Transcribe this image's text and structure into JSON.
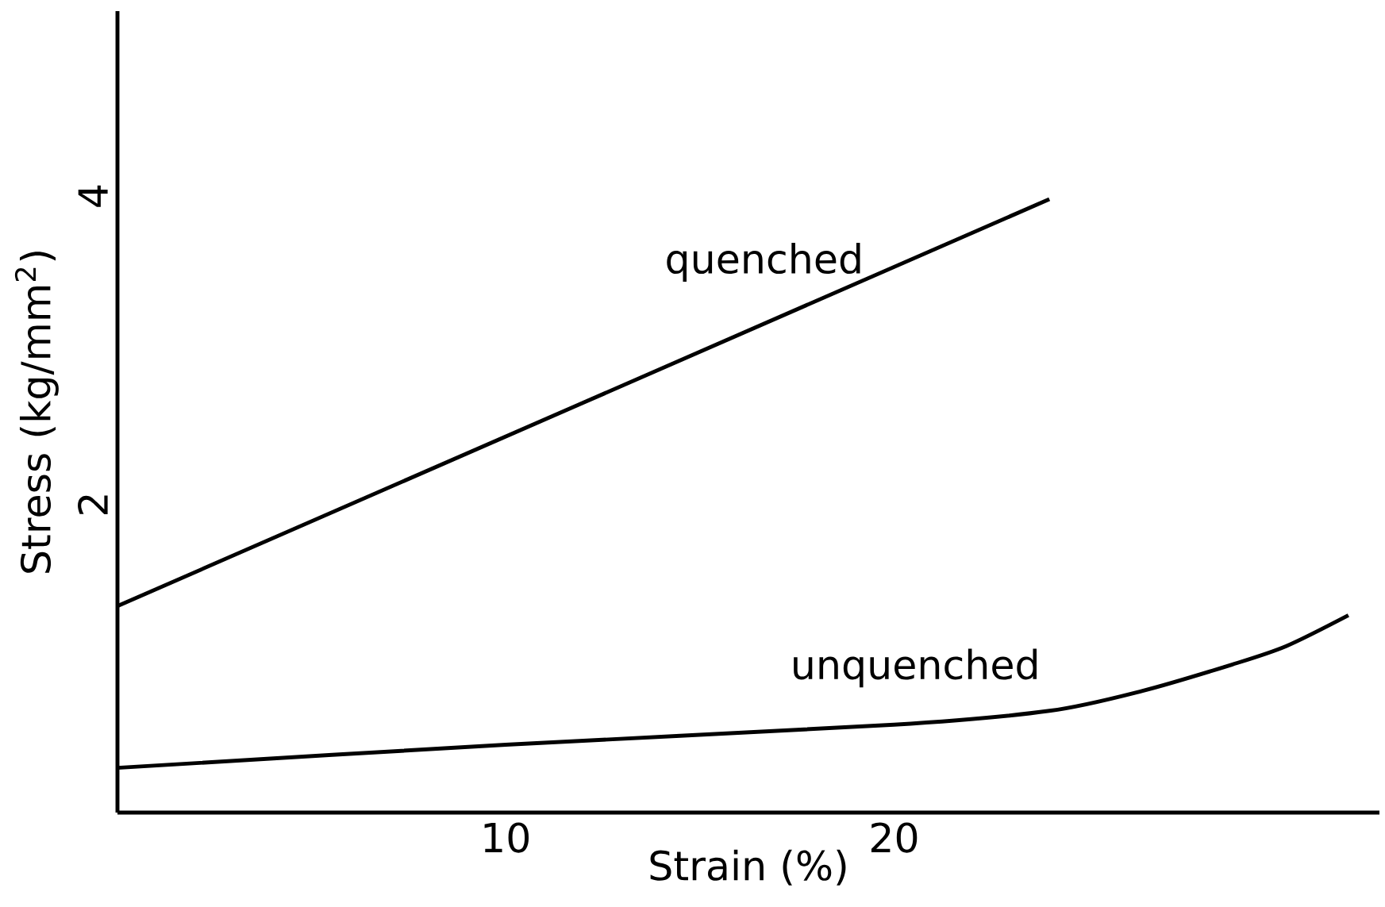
{
  "chart_data": {
    "type": "line",
    "xlabel": "Strain (%)",
    "ylabel": "Stress (kg/mm$^{2}$)",
    "xlim": [
      0,
      32.5
    ],
    "ylim": [
      0,
      5.2
    ],
    "xticks": [
      10,
      20
    ],
    "yticks": [
      2,
      4
    ],
    "grid": false,
    "legend": false,
    "marker": "none",
    "line_style": "solid",
    "series": [
      {
        "name": "quenched",
        "color": "#000000",
        "x": [
          0,
          24
        ],
        "values": [
          1.34,
          3.98
        ]
      },
      {
        "name": "unquenched",
        "color": "#000000",
        "x": [
          0,
          10,
          20,
          24,
          26.4,
          28.7,
          30.1,
          31.7
        ],
        "values": [
          0.29,
          0.44,
          0.57,
          0.66,
          0.79,
          0.96,
          1.08,
          1.28
        ]
      }
    ]
  }
}
